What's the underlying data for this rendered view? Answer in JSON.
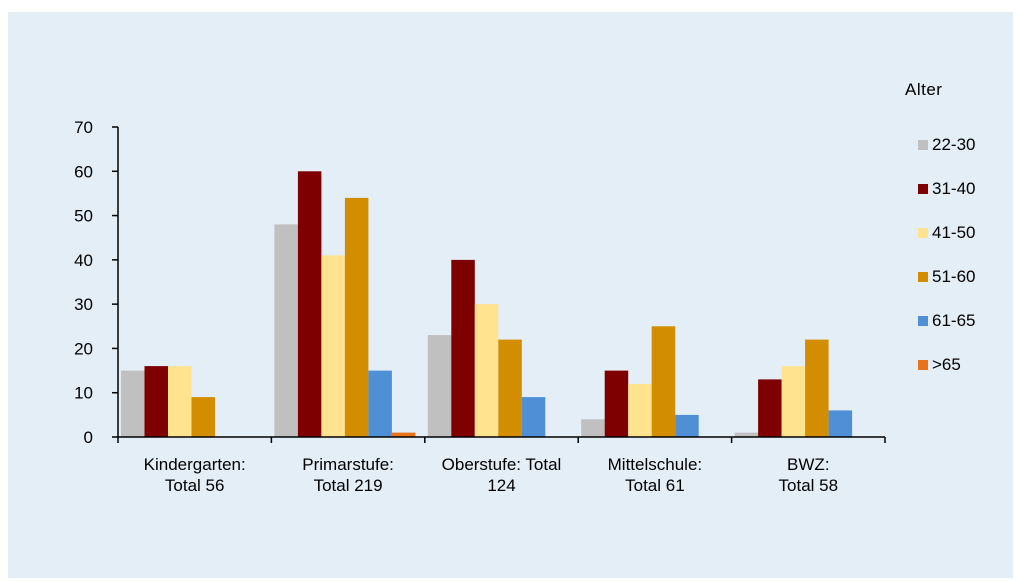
{
  "chart_data": {
    "type": "bar",
    "categories": [
      [
        "Kindergarten:",
        "Total 56"
      ],
      [
        "Primarstufe:",
        "Total 219"
      ],
      [
        "Oberstufe: Total",
        "124"
      ],
      [
        "Mittelschule:",
        "Total 61"
      ],
      [
        "BWZ:",
        "Total 58"
      ]
    ],
    "legend_title": "Alter",
    "series": [
      {
        "name": "22-30",
        "color": "#c0c0c0",
        "values": [
          15,
          48,
          23,
          4,
          1
        ]
      },
      {
        "name": "31-40",
        "color": "#7f0000",
        "values": [
          16,
          60,
          40,
          15,
          13
        ]
      },
      {
        "name": "41-50",
        "color": "#ffe38f",
        "values": [
          16,
          41,
          30,
          12,
          16
        ]
      },
      {
        "name": "51-60",
        "color": "#d38d00",
        "values": [
          9,
          54,
          22,
          25,
          22
        ]
      },
      {
        "name": "61-65",
        "color": "#4f8fd6",
        "values": [
          0,
          15,
          9,
          5,
          6
        ]
      },
      {
        "name": ">65",
        "color": "#e8731a",
        "values": [
          0,
          1,
          0,
          0,
          0
        ]
      }
    ],
    "ylim": [
      0,
      70
    ],
    "yticks": [
      0,
      10,
      20,
      30,
      40,
      50,
      60,
      70
    ],
    "legend_position": "right",
    "grid": false
  }
}
